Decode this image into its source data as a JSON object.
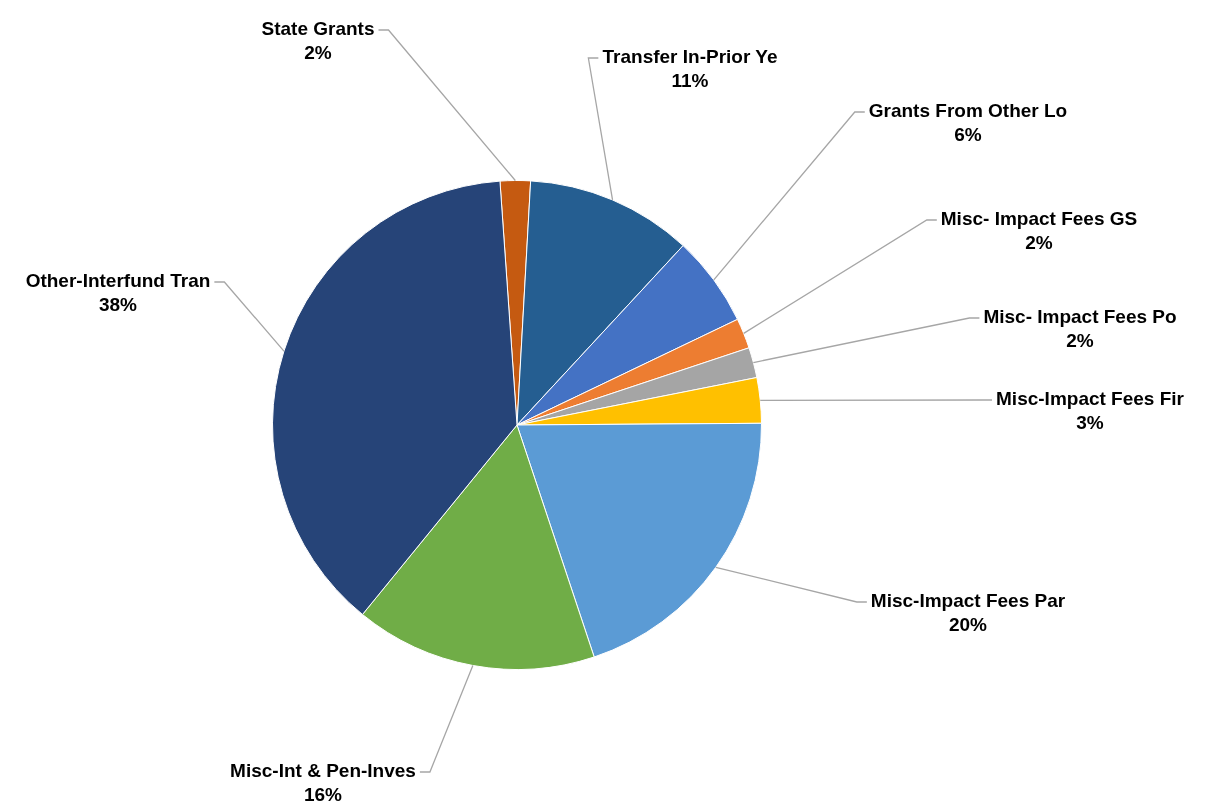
{
  "chart_data": {
    "type": "pie",
    "categories": [
      "State Grants",
      "Transfer In-Prior Ye",
      "Grants From Other Lo",
      "Misc- Impact Fees GS",
      "Misc- Impact Fees Po",
      "Misc-Impact Fees Fir",
      "Misc-Impact Fees Par",
      "Misc-Int & Pen-Inves",
      "Other-Interfund Tran"
    ],
    "values": [
      2,
      11,
      6,
      2,
      2,
      3,
      20,
      16,
      38
    ],
    "value_labels": [
      "2%",
      "11%",
      "6%",
      "2%",
      "2%",
      "3%",
      "20%",
      "16%",
      "38%"
    ],
    "colors": [
      "#c55a11",
      "#255e91",
      "#4472c4",
      "#ed7d31",
      "#a5a5a5",
      "#ffc000",
      "#5b9bd5",
      "#70ad47",
      "#264478"
    ],
    "legend": false
  }
}
